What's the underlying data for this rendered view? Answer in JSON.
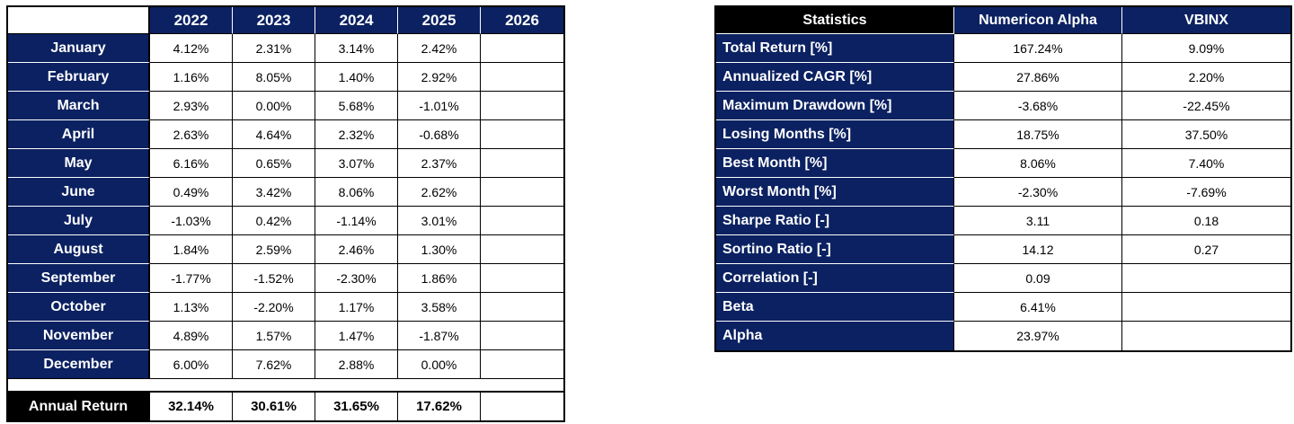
{
  "colors": {
    "navy_header": "#0b2161",
    "black_header": "#000000",
    "cell_background": "#ffffff",
    "grid_line": "#000000",
    "navy_row_separator": "#ffffff",
    "value_text": "#000000",
    "header_text": "#ffffff"
  },
  "chart_data": [
    {
      "type": "table",
      "name": "monthly_returns",
      "header_row": [
        "",
        "2022",
        "2023",
        "2024",
        "2025",
        "2026"
      ],
      "rows": [
        [
          "January",
          "4.12%",
          "2.31%",
          "3.14%",
          "2.42%",
          ""
        ],
        [
          "February",
          "1.16%",
          "8.05%",
          "1.40%",
          "2.92%",
          ""
        ],
        [
          "March",
          "2.93%",
          "0.00%",
          "5.68%",
          "-1.01%",
          ""
        ],
        [
          "April",
          "2.63%",
          "4.64%",
          "2.32%",
          "-0.68%",
          ""
        ],
        [
          "May",
          "6.16%",
          "0.65%",
          "3.07%",
          "2.37%",
          ""
        ],
        [
          "June",
          "0.49%",
          "3.42%",
          "8.06%",
          "2.62%",
          ""
        ],
        [
          "July",
          "-1.03%",
          "0.42%",
          "-1.14%",
          "3.01%",
          ""
        ],
        [
          "August",
          "1.84%",
          "2.59%",
          "2.46%",
          "1.30%",
          ""
        ],
        [
          "September",
          "-1.77%",
          "-1.52%",
          "-2.30%",
          "1.86%",
          ""
        ],
        [
          "October",
          "1.13%",
          "-2.20%",
          "1.17%",
          "3.58%",
          ""
        ],
        [
          "November",
          "4.89%",
          "1.57%",
          "1.47%",
          "-1.87%",
          ""
        ],
        [
          "December",
          "6.00%",
          "7.62%",
          "2.88%",
          "0.00%",
          ""
        ]
      ],
      "footer_row": [
        "Annual Return",
        "32.14%",
        "30.61%",
        "31.65%",
        "17.62%",
        ""
      ]
    },
    {
      "type": "table",
      "name": "statistics",
      "header_row": [
        "Statistics",
        "Numericon Alpha",
        "VBINX"
      ],
      "rows": [
        [
          "Total Return [%]",
          "167.24%",
          "9.09%"
        ],
        [
          "Annualized CAGR [%]",
          "27.86%",
          "2.20%"
        ],
        [
          "Maximum Drawdown [%]",
          "-3.68%",
          "-22.45%"
        ],
        [
          "Losing Months [%]",
          "18.75%",
          "37.50%"
        ],
        [
          "Best Month [%]",
          "8.06%",
          "7.40%"
        ],
        [
          "Worst Month [%]",
          "-2.30%",
          "-7.69%"
        ],
        [
          "Sharpe Ratio [-]",
          "3.11",
          "0.18"
        ],
        [
          "Sortino Ratio [-]",
          "14.12",
          "0.27"
        ],
        [
          "Correlation [-]",
          "0.09",
          ""
        ],
        [
          "Beta",
          "6.41%",
          ""
        ],
        [
          "Alpha",
          "23.97%",
          ""
        ]
      ]
    }
  ]
}
